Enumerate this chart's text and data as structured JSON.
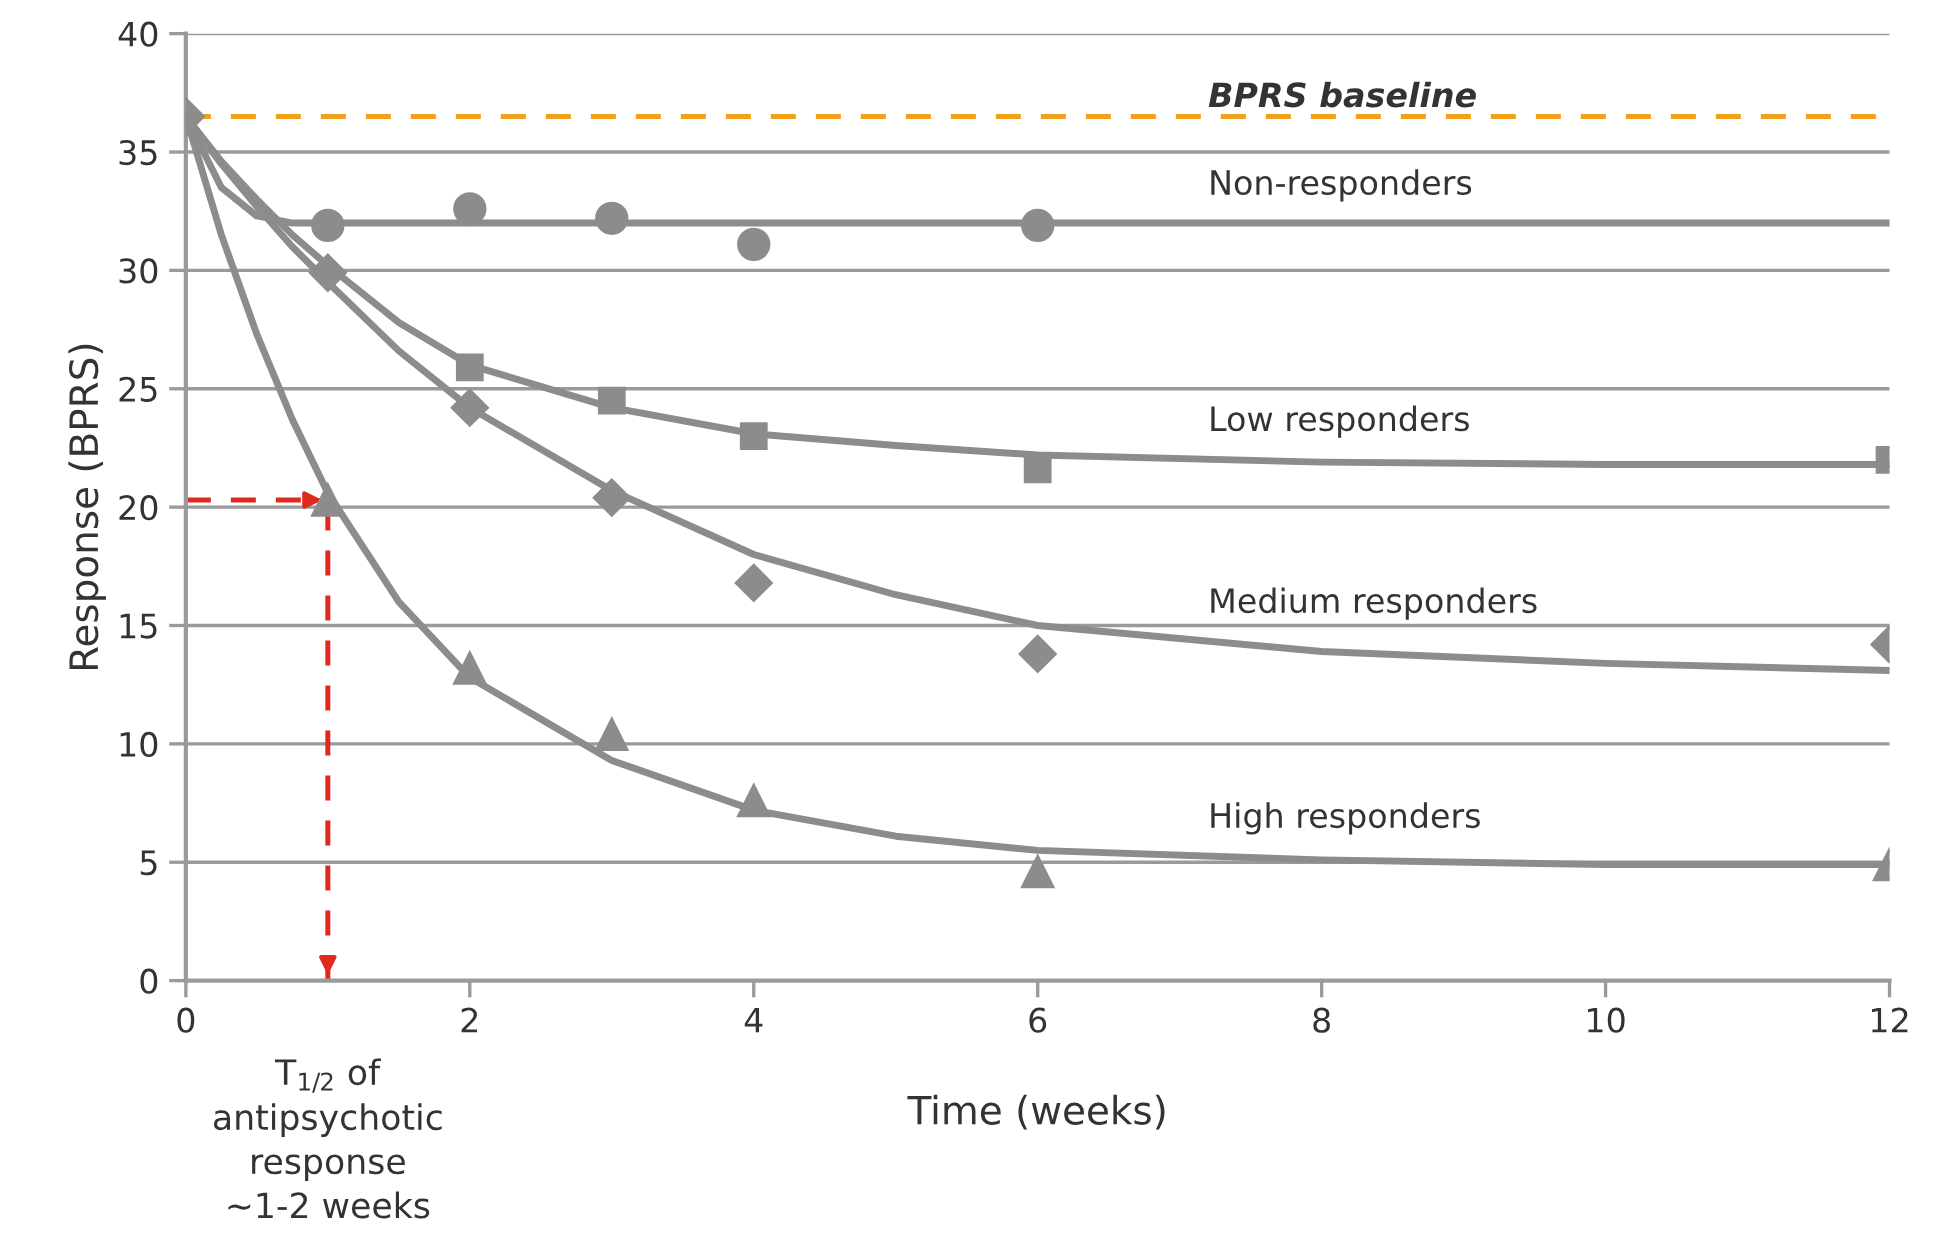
{
  "chart_data": {
    "type": "scatter",
    "xlabel": "Time (weeks)",
    "ylabel": "Response (BPRS)",
    "xlim": [
      0,
      12
    ],
    "xticks": [
      0,
      2,
      4,
      6,
      8,
      10,
      12
    ],
    "ylim": [
      0,
      40
    ],
    "yticks": [
      0,
      5,
      10,
      15,
      20,
      25,
      30,
      35,
      40
    ],
    "grid": "y",
    "series": [
      {
        "type": "line",
        "name": "Non-responders",
        "color": "#8c8c8c",
        "marker": "none",
        "line_style": "solid",
        "x": [
          0,
          0.25,
          0.5,
          0.75,
          1,
          1.5,
          2,
          3,
          4,
          5,
          6,
          8,
          10,
          12
        ],
        "values": [
          36.5,
          33.5,
          32.3,
          32.0,
          32,
          32,
          32,
          32,
          32,
          32,
          32,
          32,
          32,
          32
        ]
      },
      {
        "type": "line",
        "name": "Low responders",
        "color": "#8c8c8c",
        "marker": "none",
        "line_style": "solid",
        "x": [
          0,
          0.25,
          0.5,
          0.75,
          1,
          1.5,
          2,
          3,
          4,
          5,
          6,
          8,
          10,
          12
        ],
        "values": [
          36.5,
          34.6,
          33.0,
          31.5,
          30.2,
          27.8,
          26.0,
          24.2,
          23.1,
          22.6,
          22.2,
          21.9,
          21.8,
          21.8
        ]
      },
      {
        "type": "line",
        "name": "Medium responders",
        "color": "#8c8c8c",
        "marker": "none",
        "line_style": "solid",
        "x": [
          0,
          0.25,
          0.5,
          0.75,
          1,
          1.5,
          2,
          3,
          4,
          5,
          6,
          8,
          10,
          12
        ],
        "values": [
          36.5,
          34.5,
          32.7,
          31.0,
          29.5,
          26.6,
          24.2,
          20.7,
          18.0,
          16.3,
          15.0,
          13.9,
          13.4,
          13.1
        ]
      },
      {
        "type": "line",
        "name": "High responders",
        "color": "#8c8c8c",
        "marker": "none",
        "line_style": "solid",
        "x": [
          0,
          0.25,
          0.5,
          0.75,
          1,
          1.5,
          2,
          3,
          4,
          5,
          6,
          8,
          10,
          12
        ],
        "values": [
          36.5,
          31.5,
          27.3,
          23.7,
          20.6,
          16.0,
          12.8,
          9.3,
          7.2,
          6.1,
          5.5,
          5.1,
          4.9,
          4.9
        ]
      },
      {
        "color": "#8c8c8c",
        "marker": "circle",
        "x": [
          1,
          2,
          3,
          4,
          6
        ],
        "values": [
          31.9,
          32.6,
          32.2,
          31.1,
          31.9
        ]
      },
      {
        "color": "#8c8c8c",
        "marker": "square",
        "x": [
          2,
          3,
          4,
          6,
          12
        ],
        "values": [
          25.9,
          24.5,
          23.0,
          21.6,
          22.0
        ]
      },
      {
        "color": "#8c8c8c",
        "marker": "triangle",
        "x": [
          1,
          2,
          3,
          4,
          6,
          12
        ],
        "values": [
          20.3,
          13.2,
          10.4,
          7.6,
          4.6,
          4.9
        ]
      },
      {
        "color": "#8c8c8c",
        "marker": "diamond",
        "x": [
          0,
          1,
          2,
          3,
          4,
          6,
          12
        ],
        "values": [
          36.5,
          29.9,
          24.2,
          20.4,
          16.8,
          13.8,
          14.2
        ]
      }
    ],
    "ref_lines": [
      {
        "axis": "y",
        "value": 36.5,
        "label": "BPRS baseline",
        "color": "#f5a01a",
        "line_style": "dashed"
      },
      {
        "axis": "y",
        "value": 20.3,
        "color": "#e0281e",
        "line_style": "dashed"
      },
      {
        "axis": "x",
        "value": 1,
        "color": "#e0281e",
        "line_style": "dashed"
      }
    ],
    "annotations": [
      "T$_{1/2}$ of\nantipsychotic\nresponse\n~1-2 weeks"
    ]
  }
}
